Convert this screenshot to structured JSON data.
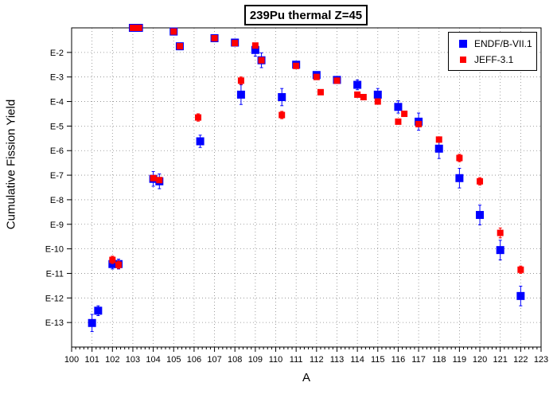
{
  "chart_data": {
    "type": "scatter",
    "title": "239Pu thermal Z=45",
    "xlabel": "A",
    "ylabel": "Cumulative Fission Yield",
    "xlim": [
      100,
      123
    ],
    "ylim_exponent": [
      -14,
      -1
    ],
    "log_scale_y": true,
    "grid": true,
    "legend_position": "top-right",
    "x_tick_labels": [
      "100",
      "101",
      "102",
      "103",
      "104",
      "105",
      "106",
      "107",
      "108",
      "109",
      "110",
      "111",
      "112",
      "113",
      "114",
      "115",
      "116",
      "117",
      "118",
      "119",
      "120",
      "121",
      "122",
      "123"
    ],
    "y_tick_labels": [
      "E-13",
      "E-12",
      "E-11",
      "E-10",
      "E-9",
      "E-8",
      "E-7",
      "E-6",
      "E-5",
      "E-4",
      "E-3",
      "E-2"
    ],
    "series": [
      {
        "name": "ENDF/B-VII.1",
        "color": "#0000ff",
        "marker": "square",
        "points": [
          {
            "x": 101.0,
            "y_exp": -13.02,
            "err": 0.35
          },
          {
            "x": 101.3,
            "y_exp": -12.52,
            "err": 0.2
          },
          {
            "x": 102.0,
            "y_exp": -10.62,
            "err": 0.2
          },
          {
            "x": 102.3,
            "y_exp": -10.62,
            "err": 0.2
          },
          {
            "x": 103.0,
            "y_exp": -1.0,
            "err": 0.1
          },
          {
            "x": 103.3,
            "y_exp": -1.0,
            "err": 0.1
          },
          {
            "x": 104.0,
            "y_exp": -7.15,
            "err": 0.3
          },
          {
            "x": 104.3,
            "y_exp": -7.25,
            "err": 0.3
          },
          {
            "x": 105.0,
            "y_exp": -1.15,
            "err": 0.1
          },
          {
            "x": 105.3,
            "y_exp": -1.75,
            "err": 0.1
          },
          {
            "x": 106.3,
            "y_exp": -5.62,
            "err": 0.25
          },
          {
            "x": 107.0,
            "y_exp": -1.42,
            "err": 0.1
          },
          {
            "x": 108.0,
            "y_exp": -1.6,
            "err": 0.1
          },
          {
            "x": 108.3,
            "y_exp": -3.72,
            "err": 0.4
          },
          {
            "x": 109.0,
            "y_exp": -1.9,
            "err": 0.25
          },
          {
            "x": 109.3,
            "y_exp": -2.32,
            "err": 0.3
          },
          {
            "x": 110.3,
            "y_exp": -3.82,
            "err": 0.35
          },
          {
            "x": 111.0,
            "y_exp": -2.5,
            "err": 0.1
          },
          {
            "x": 112.0,
            "y_exp": -2.92,
            "err": 0.1
          },
          {
            "x": 113.0,
            "y_exp": -3.12,
            "err": 0.1
          },
          {
            "x": 114.0,
            "y_exp": -3.32,
            "err": 0.2
          },
          {
            "x": 115.0,
            "y_exp": -3.72,
            "err": 0.25
          },
          {
            "x": 116.0,
            "y_exp": -4.22,
            "err": 0.25
          },
          {
            "x": 117.0,
            "y_exp": -4.82,
            "err": 0.35
          },
          {
            "x": 118.0,
            "y_exp": -5.92,
            "err": 0.4
          },
          {
            "x": 119.0,
            "y_exp": -7.12,
            "err": 0.4
          },
          {
            "x": 120.0,
            "y_exp": -8.62,
            "err": 0.4
          },
          {
            "x": 121.0,
            "y_exp": -10.05,
            "err": 0.4
          },
          {
            "x": 122.0,
            "y_exp": -11.92,
            "err": 0.4
          }
        ]
      },
      {
        "name": "JEFF-3.1",
        "color": "#ff0000",
        "marker": "square",
        "points": [
          {
            "x": 102.0,
            "y_exp": -10.45,
            "err": 0.15
          },
          {
            "x": 102.3,
            "y_exp": -10.65,
            "err": 0.15
          },
          {
            "x": 103.0,
            "y_exp": -1.0,
            "err": 0
          },
          {
            "x": 103.3,
            "y_exp": -1.0,
            "err": 0
          },
          {
            "x": 104.0,
            "y_exp": -7.12,
            "err": 0.1
          },
          {
            "x": 104.3,
            "y_exp": -7.2,
            "err": 0.1
          },
          {
            "x": 105.0,
            "y_exp": -1.15,
            "err": 0
          },
          {
            "x": 105.3,
            "y_exp": -1.75,
            "err": 0
          },
          {
            "x": 106.2,
            "y_exp": -4.65,
            "err": 0.15
          },
          {
            "x": 107.0,
            "y_exp": -1.42,
            "err": 0
          },
          {
            "x": 108.0,
            "y_exp": -1.62,
            "err": 0
          },
          {
            "x": 108.3,
            "y_exp": -3.15,
            "err": 0.15
          },
          {
            "x": 109.0,
            "y_exp": -1.72,
            "err": 0.1
          },
          {
            "x": 109.3,
            "y_exp": -2.32,
            "err": 0
          },
          {
            "x": 110.3,
            "y_exp": -4.55,
            "err": 0.15
          },
          {
            "x": 111.0,
            "y_exp": -2.55,
            "err": 0
          },
          {
            "x": 112.0,
            "y_exp": -3.0,
            "err": 0
          },
          {
            "x": 112.2,
            "y_exp": -3.62,
            "err": 0
          },
          {
            "x": 113.0,
            "y_exp": -3.15,
            "err": 0
          },
          {
            "x": 114.0,
            "y_exp": -3.72,
            "err": 0
          },
          {
            "x": 114.3,
            "y_exp": -3.82,
            "err": 0
          },
          {
            "x": 115.0,
            "y_exp": -4.0,
            "err": 0.1
          },
          {
            "x": 116.0,
            "y_exp": -4.82,
            "err": 0.1
          },
          {
            "x": 116.3,
            "y_exp": -4.5,
            "err": 0.1
          },
          {
            "x": 117.0,
            "y_exp": -4.92,
            "err": 0.1
          },
          {
            "x": 118.0,
            "y_exp": -5.55,
            "err": 0.1
          },
          {
            "x": 119.0,
            "y_exp": -6.3,
            "err": 0.15
          },
          {
            "x": 120.0,
            "y_exp": -7.25,
            "err": 0.15
          },
          {
            "x": 121.0,
            "y_exp": -9.35,
            "err": 0.2
          },
          {
            "x": 122.0,
            "y_exp": -10.85,
            "err": 0.15
          }
        ]
      }
    ]
  }
}
